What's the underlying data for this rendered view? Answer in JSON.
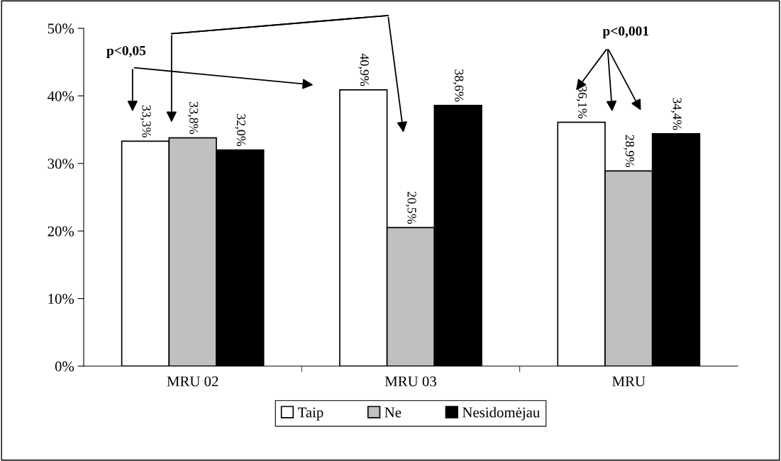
{
  "chart_data": {
    "type": "bar",
    "categories": [
      "MRU 02",
      "MRU 03",
      "MRU"
    ],
    "series": [
      {
        "name": "Taip",
        "color": "#ffffff",
        "values": [
          33.3,
          40.9,
          36.1
        ],
        "value_labels": [
          "33,3%",
          "40,9%",
          "36,1%"
        ]
      },
      {
        "name": "Ne",
        "color": "#c0c0c0",
        "values": [
          33.8,
          20.5,
          28.9
        ],
        "value_labels": [
          "33,8%",
          "20,5%",
          "28,9%"
        ]
      },
      {
        "name": "Nesidomėjau",
        "color": "#000000",
        "values": [
          32.0,
          38.6,
          34.4
        ],
        "value_labels": [
          "32,0%",
          "38,6%",
          "34,4%"
        ]
      }
    ],
    "ylim": [
      0,
      50
    ],
    "yticks": [
      {
        "value": 0,
        "label": "0%"
      },
      {
        "value": 10,
        "label": "10%"
      },
      {
        "value": 20,
        "label": "20%"
      },
      {
        "value": 30,
        "label": "30%"
      },
      {
        "value": 40,
        "label": "40%"
      },
      {
        "value": 50,
        "label": "50%"
      }
    ],
    "annotations": [
      "p<0,05",
      "p<0,001"
    ],
    "grid": false,
    "legend": "bottom"
  }
}
